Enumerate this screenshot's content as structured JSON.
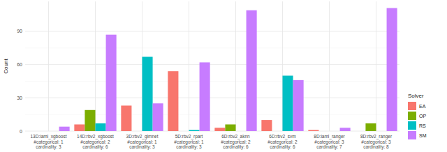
{
  "chart_data": {
    "type": "bar",
    "categories": [
      "13D:iaml_xgboost\n#categorical: 1\ncardinality: 3",
      "14D:rbv2_xgboost\n#categorical: 2\ncardinality: 6",
      "3D:rbv2_glmnet\n#categorical: 1\ncardinality: 3",
      "5D:rbv2_rpart\n#categorical: 1\ncardinality: 3",
      "6D:rbv2_aknn\n#categorical: 2\ncardinality: 6",
      "6D:rbv2_svm\n#categorical: 2\ncardinality: 6",
      "8D:iaml_ranger\n#categorical: 3\ncardinality: 7",
      "8D:rbv2_ranger\n#categorical: 3\ncardinality: 8"
    ],
    "series": [
      {
        "name": "EA",
        "color": "#F8766D",
        "values": [
          0,
          6,
          23,
          54,
          3,
          10,
          1,
          0
        ]
      },
      {
        "name": "OP",
        "color": "#7CAE00",
        "values": [
          0,
          19,
          0,
          0,
          6,
          0,
          0,
          7
        ]
      },
      {
        "name": "RS",
        "color": "#00BFC4",
        "values": [
          0,
          7,
          67,
          1,
          0,
          50,
          0,
          0
        ]
      },
      {
        "name": "SM",
        "color": "#C77CFF",
        "values": [
          4,
          87,
          25,
          62,
          109,
          46,
          3,
          111
        ]
      }
    ],
    "y_label": "Count",
    "legend_title": "Solver",
    "ylim": [
      0,
      117
    ],
    "yticks": [
      0,
      30,
      60,
      90
    ],
    "grid": true,
    "legend": "right"
  }
}
